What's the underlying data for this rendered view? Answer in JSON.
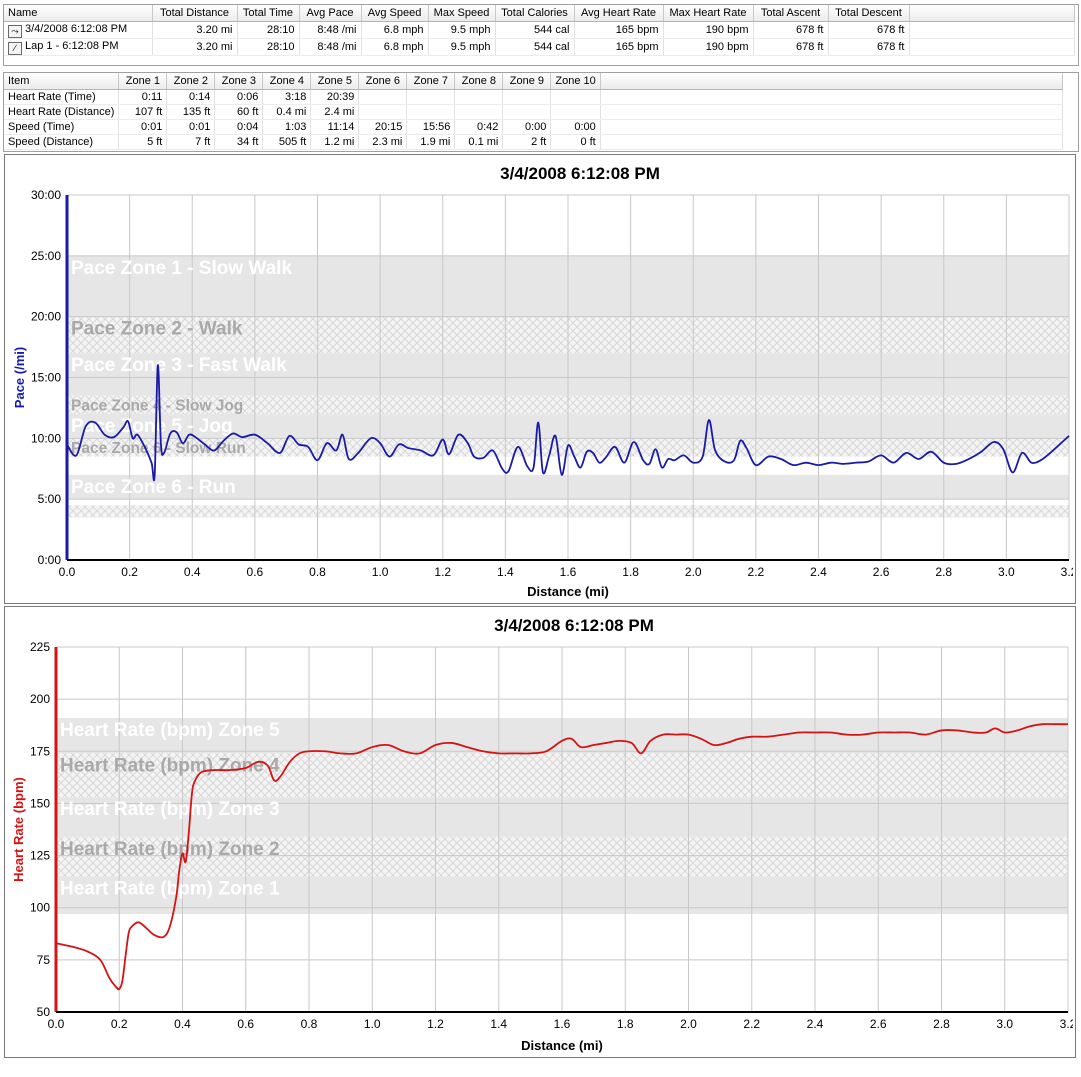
{
  "summary_table": {
    "columns": [
      "Name",
      "Total Distance",
      "Total Time",
      "Avg Pace",
      "Avg Speed",
      "Max Speed",
      "Total Calories",
      "Avg Heart Rate",
      "Max Heart Rate",
      "Total Ascent",
      "Total Descent"
    ],
    "rows": [
      {
        "icon": "activity-icon",
        "cells": [
          "3/4/2008 6:12:08 PM",
          "3.20 mi",
          "28:10",
          "8:48 /mi",
          "6.8 mph",
          "9.5 mph",
          "544 cal",
          "165 bpm",
          "190 bpm",
          "678 ft",
          "678 ft"
        ]
      },
      {
        "icon": "lap-icon",
        "cells": [
          "Lap 1 - 6:12:08 PM",
          "3.20 mi",
          "28:10",
          "8:48 /mi",
          "6.8 mph",
          "9.5 mph",
          "544 cal",
          "165 bpm",
          "190 bpm",
          "678 ft",
          "678 ft"
        ]
      }
    ]
  },
  "zones_table": {
    "columns": [
      "Item",
      "Zone 1",
      "Zone 2",
      "Zone 3",
      "Zone 4",
      "Zone 5",
      "Zone 6",
      "Zone 7",
      "Zone 8",
      "Zone 9",
      "Zone 10"
    ],
    "rows": [
      [
        "Heart Rate (Time)",
        "0:11",
        "0:14",
        "0:06",
        "3:18",
        "20:39",
        "",
        "",
        "",
        "",
        ""
      ],
      [
        "Heart Rate (Distance)",
        "107 ft",
        "135 ft",
        "60 ft",
        "0.4 mi",
        "2.4 mi",
        "",
        "",
        "",
        "",
        ""
      ],
      [
        "Speed (Time)",
        "0:01",
        "0:01",
        "0:04",
        "1:03",
        "11:14",
        "20:15",
        "15:56",
        "0:42",
        "0:00",
        "0:00"
      ],
      [
        "Speed (Distance)",
        "5 ft",
        "7 ft",
        "34 ft",
        "505 ft",
        "1.2 mi",
        "2.3 mi",
        "1.9 mi",
        "0.1 mi",
        "2 ft",
        "0 ft"
      ]
    ]
  },
  "colors": {
    "pace_line": "#1a1aa8",
    "hr_line": "#d41414",
    "zone_band": "#e6e6e6",
    "grid": "#c8c8c8"
  },
  "chart_data": [
    {
      "type": "line",
      "title": "3/4/2008 6:12:08 PM",
      "xlabel": "Distance (mi)",
      "ylabel": "Pace (/mi)",
      "xlim": [
        0,
        3.2
      ],
      "ylim": [
        0,
        30
      ],
      "xticks": [
        "0.0",
        "0.2",
        "0.4",
        "0.6",
        "0.8",
        "1.0",
        "1.2",
        "1.4",
        "1.6",
        "1.8",
        "2.0",
        "2.2",
        "2.4",
        "2.6",
        "2.8",
        "3.0",
        "3.2"
      ],
      "yticks": [
        "0:00",
        "5:00",
        "10:00",
        "15:00",
        "20:00",
        "25:00",
        "30:00"
      ],
      "zones": [
        {
          "label": "Pace Zone 1 - Slow Walk",
          "from": 20,
          "to": 25,
          "style": "solid"
        },
        {
          "label": "Pace Zone 2 - Walk",
          "from": 17,
          "to": 20,
          "style": "hatch"
        },
        {
          "label": "Pace Zone 3 - Fast Walk",
          "from": 13.5,
          "to": 17,
          "style": "solid"
        },
        {
          "label": "Pace Zone 4 - Slow Jog",
          "from": 12,
          "to": 13.5,
          "style": "hatch"
        },
        {
          "label": "Pace Zone 5 - Jog",
          "from": 10,
          "to": 12,
          "style": "solid"
        },
        {
          "label": "Pace Zone 6 - Slow Run",
          "from": 8.5,
          "to": 10,
          "style": "hatch"
        },
        {
          "label": "Pace Zone 6 - Run",
          "from": 5,
          "to": 7,
          "style": "solid"
        },
        {
          "label": "",
          "from": 3.5,
          "to": 4.5,
          "style": "hatch"
        }
      ],
      "series": [
        {
          "x": [
            0,
            0.03,
            0.06,
            0.09,
            0.12,
            0.15,
            0.18,
            0.195,
            0.21,
            0.225,
            0.25,
            0.27,
            0.28,
            0.29,
            0.3,
            0.31,
            0.33,
            0.35,
            0.37,
            0.39,
            0.41,
            0.44,
            0.47,
            0.5,
            0.53,
            0.56,
            0.6,
            0.64,
            0.68,
            0.71,
            0.74,
            0.77,
            0.8,
            0.83,
            0.86,
            0.88,
            0.9,
            0.93,
            0.97,
            1.0,
            1.03,
            1.06,
            1.09,
            1.13,
            1.17,
            1.2,
            1.22,
            1.25,
            1.28,
            1.3,
            1.33,
            1.36,
            1.39,
            1.41,
            1.44,
            1.47,
            1.49,
            1.505,
            1.52,
            1.54,
            1.56,
            1.58,
            1.6,
            1.62,
            1.64,
            1.66,
            1.68,
            1.7,
            1.72,
            1.75,
            1.78,
            1.81,
            1.84,
            1.86,
            1.88,
            1.9,
            1.92,
            1.94,
            1.97,
            2.0,
            2.03,
            2.05,
            2.07,
            2.1,
            2.13,
            2.15,
            2.17,
            2.2,
            2.24,
            2.28,
            2.32,
            2.36,
            2.4,
            2.44,
            2.48,
            2.52,
            2.56,
            2.6,
            2.64,
            2.68,
            2.72,
            2.76,
            2.8,
            2.84,
            2.88,
            2.92,
            2.96,
            2.99,
            3.02,
            3.05,
            3.08,
            3.11,
            3.14,
            3.17,
            3.2
          ],
          "y": [
            9.5,
            8.6,
            11.0,
            11.3,
            10.3,
            10.1,
            10.9,
            11.4,
            10.0,
            10.3,
            9.2,
            8.0,
            7.0,
            16.0,
            9.5,
            8.8,
            10.4,
            10.5,
            9.6,
            10.3,
            10.1,
            9.5,
            9.0,
            9.8,
            10.4,
            10.1,
            10.3,
            9.6,
            8.8,
            10.2,
            9.5,
            9.3,
            8.2,
            9.6,
            9.0,
            10.3,
            8.3,
            8.8,
            10.0,
            9.6,
            8.5,
            9.5,
            9.2,
            9.0,
            8.6,
            9.9,
            8.7,
            10.3,
            9.6,
            8.5,
            8.4,
            9.0,
            7.5,
            7.3,
            9.3,
            7.7,
            7.6,
            11.3,
            7.2,
            8.6,
            10.2,
            7.0,
            9.4,
            8.5,
            7.6,
            8.9,
            8.8,
            8.0,
            8.4,
            9.3,
            8.0,
            9.7,
            8.2,
            7.9,
            9.1,
            7.6,
            8.3,
            8.2,
            8.6,
            8.0,
            8.5,
            11.5,
            9.0,
            8.1,
            8.2,
            9.8,
            9.2,
            7.8,
            8.5,
            8.3,
            7.8,
            8.0,
            7.8,
            8.0,
            7.9,
            8.0,
            8.1,
            8.6,
            8.0,
            8.8,
            8.3,
            8.9,
            8.0,
            7.9,
            8.3,
            8.9,
            9.7,
            9.1,
            7.2,
            8.8,
            8.0,
            8.2,
            8.8,
            9.5,
            10.2
          ],
          "color": "#1a1aa8"
        }
      ]
    },
    {
      "type": "line",
      "title": "3/4/2008 6:12:08 PM",
      "xlabel": "Distance (mi)",
      "ylabel": "Heart Rate (bpm)",
      "xlim": [
        0,
        3.2
      ],
      "ylim": [
        50,
        225
      ],
      "xticks": [
        "0.0",
        "0.2",
        "0.4",
        "0.6",
        "0.8",
        "1.0",
        "1.2",
        "1.4",
        "1.6",
        "1.8",
        "2.0",
        "2.2",
        "2.4",
        "2.6",
        "2.8",
        "3.0",
        "3.2"
      ],
      "yticks": [
        "50",
        "75",
        "100",
        "125",
        "150",
        "175",
        "200",
        "225"
      ],
      "zones": [
        {
          "label": "Heart Rate (bpm) Zone 5",
          "from": 174,
          "to": 191,
          "style": "solid"
        },
        {
          "label": "Heart Rate (bpm) Zone 4",
          "from": 153,
          "to": 174,
          "style": "hatch"
        },
        {
          "label": "Heart Rate (bpm) Zone 3",
          "from": 134,
          "to": 153,
          "style": "solid"
        },
        {
          "label": "Heart Rate (bpm) Zone 2",
          "from": 115,
          "to": 134,
          "style": "hatch"
        },
        {
          "label": "Heart Rate (bpm) Zone 1",
          "from": 97,
          "to": 115,
          "style": "solid"
        }
      ],
      "series": [
        {
          "x": [
            0,
            0.03,
            0.06,
            0.1,
            0.14,
            0.17,
            0.19,
            0.2,
            0.21,
            0.22,
            0.23,
            0.24,
            0.26,
            0.28,
            0.31,
            0.34,
            0.36,
            0.38,
            0.39,
            0.4,
            0.41,
            0.42,
            0.43,
            0.44,
            0.46,
            0.5,
            0.55,
            0.6,
            0.64,
            0.67,
            0.69,
            0.71,
            0.74,
            0.77,
            0.8,
            0.85,
            0.9,
            0.95,
            1.0,
            1.05,
            1.1,
            1.15,
            1.2,
            1.25,
            1.3,
            1.35,
            1.4,
            1.45,
            1.5,
            1.55,
            1.6,
            1.63,
            1.66,
            1.7,
            1.74,
            1.78,
            1.82,
            1.85,
            1.88,
            1.92,
            1.96,
            2.0,
            2.04,
            2.08,
            2.12,
            2.16,
            2.2,
            2.25,
            2.3,
            2.35,
            2.4,
            2.45,
            2.5,
            2.55,
            2.6,
            2.65,
            2.7,
            2.75,
            2.8,
            2.85,
            2.9,
            2.94,
            2.97,
            3.0,
            3.04,
            3.08,
            3.12,
            3.16,
            3.2
          ],
          "y": [
            83,
            82,
            81,
            79,
            75,
            66,
            62,
            61,
            65,
            77,
            88,
            91,
            93,
            91,
            87,
            86,
            91,
            105,
            118,
            126,
            122,
            136,
            155,
            161,
            165,
            166,
            166,
            167,
            170,
            168,
            161,
            163,
            170,
            174,
            175,
            175,
            174,
            174,
            177,
            178,
            175,
            174,
            178,
            179,
            177,
            175,
            174,
            174,
            174,
            175,
            180,
            181,
            177,
            178,
            179,
            180,
            179,
            174,
            180,
            183,
            183,
            183,
            181,
            178,
            179,
            181,
            182,
            182,
            183,
            184,
            184,
            184,
            183,
            183,
            184,
            184,
            184,
            183,
            185,
            185,
            184,
            184,
            186,
            184,
            185,
            187,
            188,
            188,
            188
          ],
          "color": "#d41414"
        }
      ]
    }
  ]
}
